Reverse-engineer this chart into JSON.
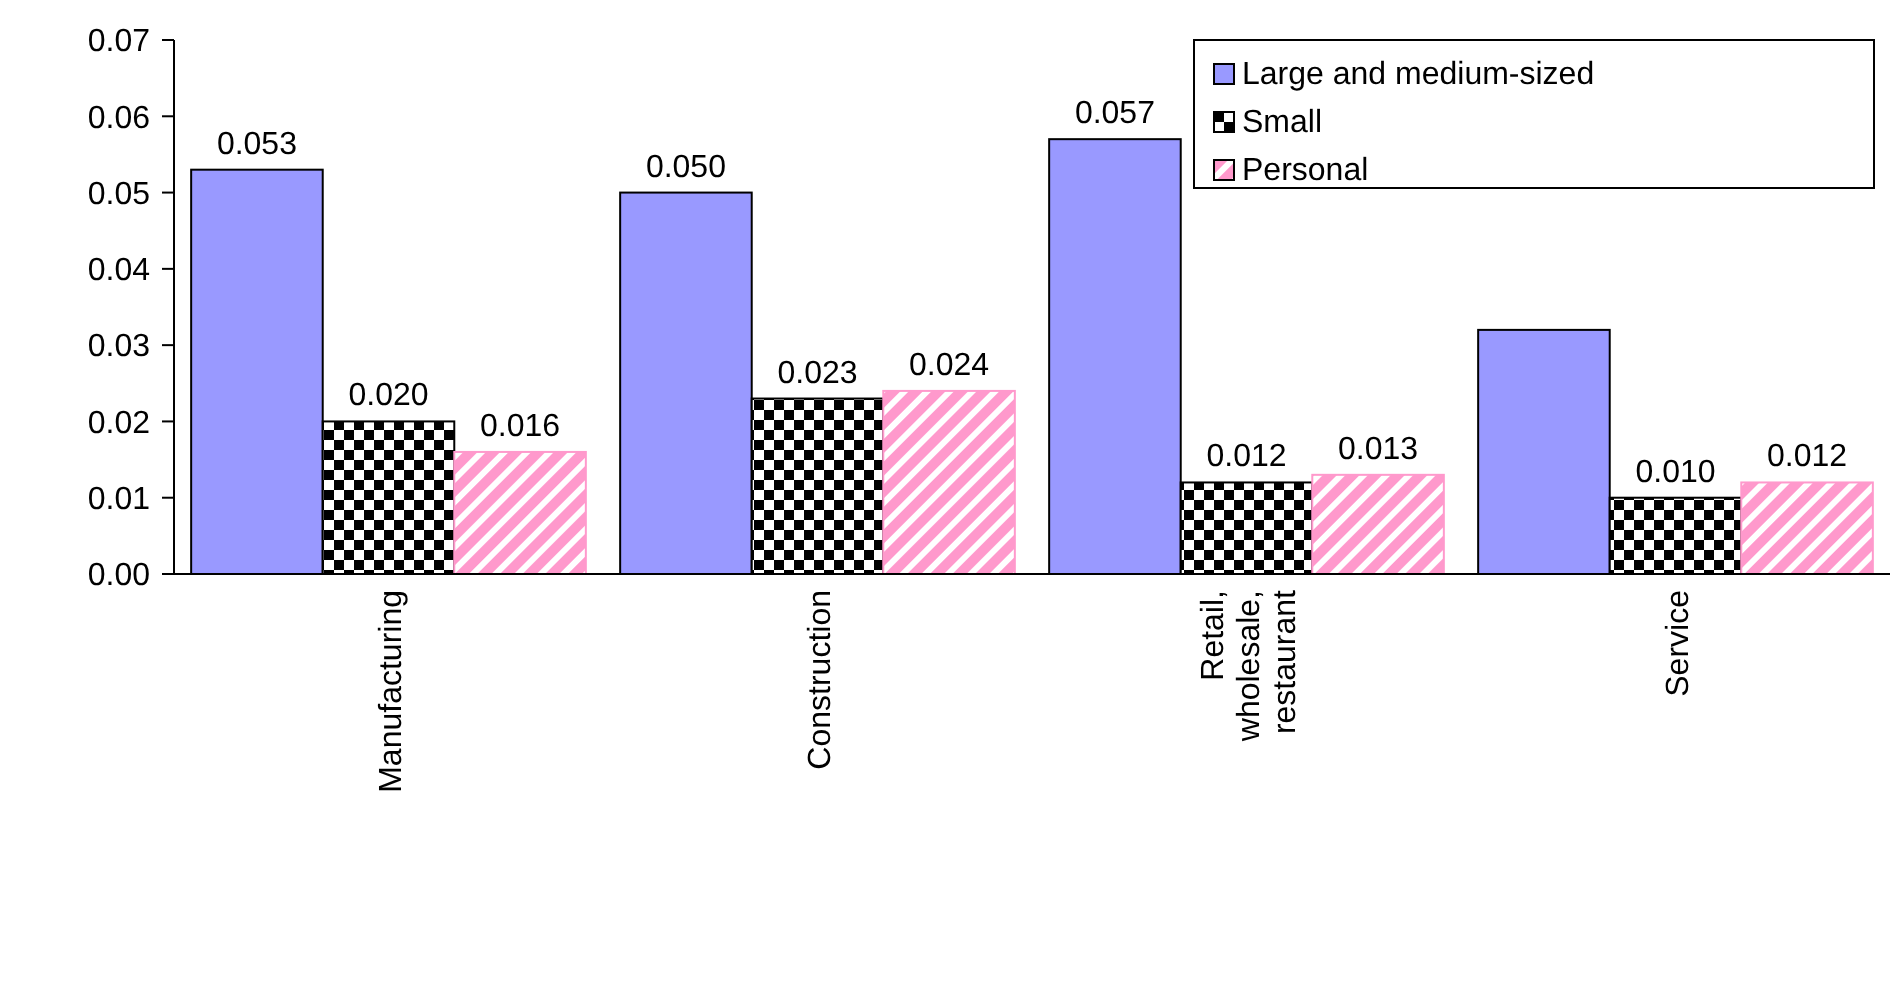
{
  "chart_data": {
    "type": "bar",
    "categories": [
      "Manufacturing",
      "Construction",
      "Retail, wholesale, restaurant",
      "Service"
    ],
    "series": [
      {
        "name": "Large and medium-sized",
        "color": "#9999ff",
        "values": [
          0.053,
          0.05,
          0.057,
          0.032
        ],
        "value_labels": [
          "0.053",
          "0.050",
          "0.057",
          null
        ]
      },
      {
        "name": "Small",
        "color": "#000000",
        "values": [
          0.02,
          0.023,
          0.012,
          0.01
        ],
        "value_labels": [
          "0.020",
          "0.023",
          "0.012",
          "0.010"
        ]
      },
      {
        "name": "Personal",
        "color": "#ff99cc",
        "values": [
          0.016,
          0.024,
          0.013,
          0.012
        ],
        "value_labels": [
          "0.016",
          "0.024",
          "0.013",
          "0.012"
        ]
      }
    ],
    "ylim": [
      0,
      0.07
    ],
    "yticks": [
      {
        "value": 0,
        "label": "0.00"
      },
      {
        "value": 0.01,
        "label": "0.01"
      },
      {
        "value": 0.02,
        "label": "0.02"
      },
      {
        "value": 0.03,
        "label": "0.03"
      },
      {
        "value": 0.04,
        "label": "0.04"
      },
      {
        "value": 0.05,
        "label": "0.05"
      },
      {
        "value": 0.06,
        "label": "0.06"
      },
      {
        "value": 0.07,
        "label": "0.07"
      }
    ],
    "legend": "top right",
    "grid": false
  }
}
